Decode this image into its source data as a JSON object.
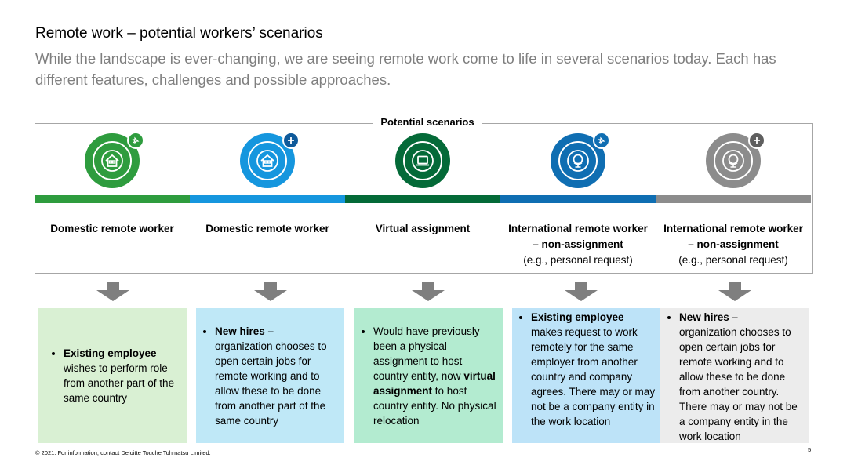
{
  "header": {
    "title": "Remote work – potential workers’ scenarios",
    "subtitle": "While the landscape is ever-changing, we are seeing remote work come to life in several scenarios today. Each has different features, challenges and possible approaches."
  },
  "frame_label": "Potential scenarios",
  "colors": {
    "green": "#2e9c3e",
    "light_blue": "#1596de",
    "dark_green": "#046a38",
    "dark_blue": "#0f6eb2",
    "gray": "#8c8c8c",
    "arrow": "#7f7f7f"
  },
  "scenarios": [
    {
      "icon": "house-icon",
      "badge": "pin-icon",
      "heading_bold": "Domestic remote worker",
      "heading_bold2": "",
      "heading_normal": "",
      "box_bold": "Existing employee",
      "box_text": "wishes to perform role from another part of the same country",
      "box_bg": "#d9f0d3"
    },
    {
      "icon": "house-icon",
      "badge": "plus-icon",
      "heading_bold": "Domestic remote worker",
      "heading_bold2": "",
      "heading_normal": "",
      "box_bold": "New hires –",
      "box_text": "organization chooses to open certain jobs for remote working and to allow these to be done from another part of the same country",
      "box_bg": "#bfe8f7"
    },
    {
      "icon": "laptop-icon",
      "badge": "",
      "heading_bold": "Virtual assignment",
      "heading_bold2": "",
      "heading_normal": "",
      "box_pre": "Would have previously been a physical assignment to host country entity, now",
      "box_bold": "virtual assignment",
      "box_text": "to host country entity. No physical relocation",
      "box_bg": "#b3ebd0"
    },
    {
      "icon": "globe-icon",
      "badge": "pin-icon",
      "heading_bold": "International remote worker",
      "heading_bold2": "– non-assignment",
      "heading_normal": "(e.g., personal request)",
      "box_bold": "Existing employee",
      "box_text": "makes request to work remotely for the same employer from another country and company agrees. There may or may not be a company entity in the work location",
      "box_bg": "#bde3f8"
    },
    {
      "icon": "globe-icon",
      "badge": "plus-icon",
      "heading_bold": "International remote worker",
      "heading_bold2": "– non-assignment",
      "heading_normal": "(e.g., personal request)",
      "box_bold": "New hires –",
      "box_text": "organization chooses to open certain jobs for remote working and to allow these to be done from another country. There may or may not be a company entity in the work location",
      "box_bg": "#ececec"
    }
  ],
  "footer": {
    "copyright": "© 2021. For information, contact Deloitte Touche Tohmatsu Limited.",
    "page_number": "5"
  }
}
